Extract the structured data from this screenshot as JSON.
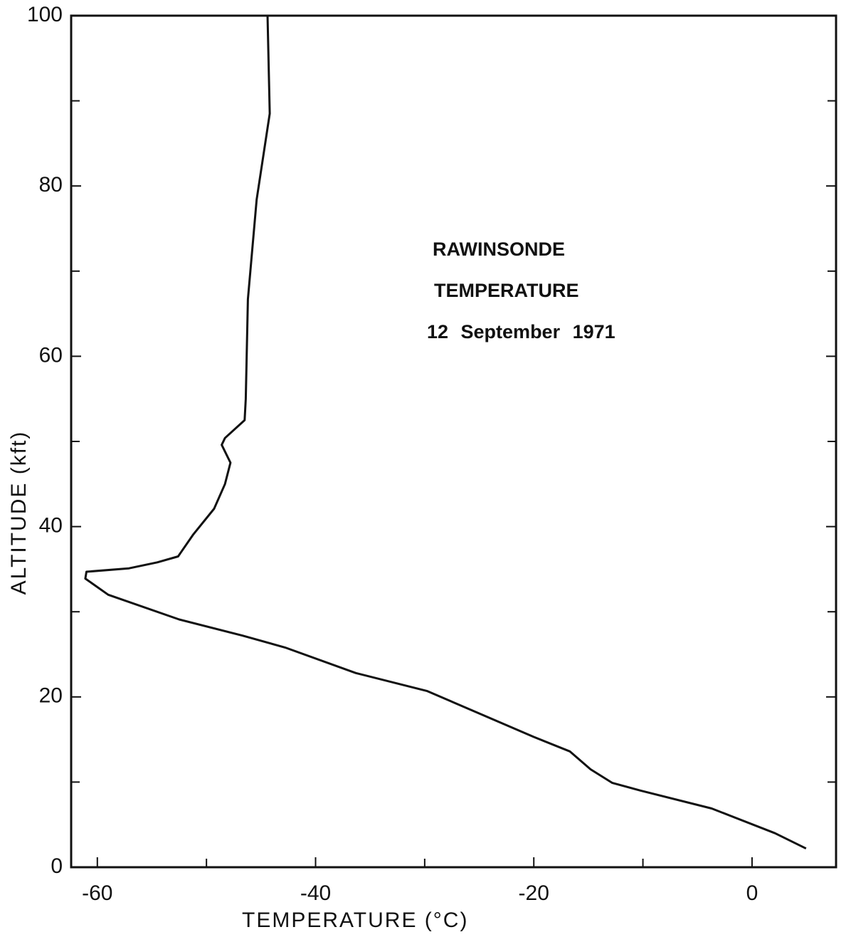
{
  "chart_data": {
    "type": "line",
    "x_label": "TEMPERATURE (°C)",
    "y_label": "ALTITUDE (kft)",
    "annotations": [
      "RAWINSONDE",
      "TEMPERATURE",
      "12 September 1971"
    ],
    "series": [
      {
        "color": "#111111",
        "x": [
          4.95,
          2.1,
          -3.7,
          -10.2,
          -12.8,
          -14.8,
          -16.7,
          -20.0,
          -29.8,
          -36.3,
          -42.8,
          -46.7,
          -52.5,
          -59.0,
          -61.1,
          -61.0,
          -57.1,
          -54.5,
          -52.6,
          -51.2,
          -49.3,
          -48.3,
          -47.8,
          -48.6,
          -48.3,
          -46.5,
          -46.4,
          -46.2,
          -45.4,
          -44.2,
          -44.4
        ],
        "values": [
          2.2,
          4.0,
          6.9,
          9.0,
          9.9,
          11.5,
          13.6,
          15.3,
          20.7,
          22.8,
          25.8,
          27.2,
          29.1,
          32.0,
          33.9,
          34.7,
          35.1,
          35.8,
          36.5,
          39.1,
          42.1,
          45.0,
          47.5,
          49.6,
          50.4,
          52.5,
          55.0,
          66.7,
          78.4,
          88.5,
          100
        ]
      }
    ],
    "xlim": [
      -62.4,
      7.7
    ],
    "xticks": [
      -60,
      -40,
      -20,
      0
    ],
    "xminor_ticks": [
      -50,
      -30,
      -10
    ],
    "ylim": [
      0,
      100
    ],
    "yticks": [
      0,
      20,
      40,
      60,
      80,
      100
    ],
    "yminor_ticks": [
      10,
      30,
      50,
      70,
      90
    ],
    "grid": false
  }
}
